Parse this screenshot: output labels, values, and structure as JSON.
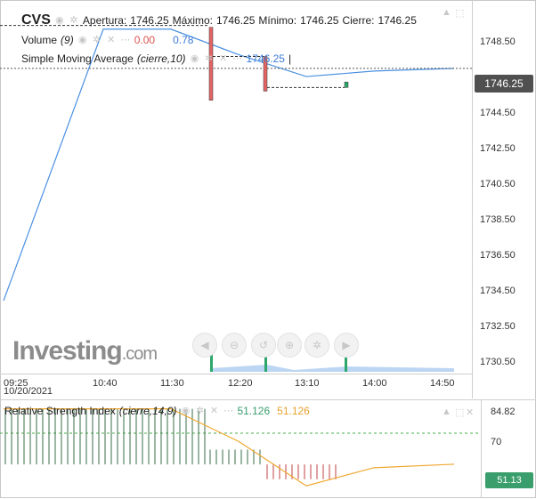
{
  "symbol": "CVS",
  "ohlc": {
    "open_label": "Apertura:",
    "open": "1746.25",
    "high_label": "Máximo:",
    "high": "1746.25",
    "low_label": "Mínimo:",
    "low": "1746.25",
    "close_label": "Cierre:",
    "close": "1746.25"
  },
  "volume": {
    "name": "Volume",
    "param": "(9)",
    "value_red": "0.00",
    "value_blue": "0.78"
  },
  "sma": {
    "name": "Simple Moving Average",
    "param": "(cierre,10)",
    "value": "1746.25",
    "suffix": "|"
  },
  "price_tag": "1746.25",
  "y_ticks": [
    "1748.50",
    "1744.50",
    "1742.50",
    "1740.50",
    "1738.50",
    "1736.50",
    "1734.50",
    "1732.50",
    "1730.50"
  ],
  "x_ticks": [
    "09:25",
    "10:40",
    "11:30",
    "12:20",
    "13:10",
    "14:00",
    "14:50"
  ],
  "date_label": "10/20/2021",
  "watermark": "Investing",
  "watermark_suffix": ".com",
  "rsi": {
    "name": "Relative Strength Index",
    "param": "(cierre,14,9)",
    "value_green": "51.126",
    "value_orange": "51.126",
    "tag": "51.13",
    "ticks": [
      "84.82",
      "70"
    ]
  },
  "nav_icons": [
    "arrow-left-icon",
    "zoom-out-icon",
    "reset-icon",
    "zoom-in-icon",
    "settings-icon",
    "arrow-right-icon"
  ],
  "colors": {
    "sma_line": "#4a90e2",
    "up": "#2ca66a",
    "down": "#e46464",
    "rsi_line": "#f0a830",
    "rsi_level": "#48b048",
    "price_tag": "#505050"
  },
  "chart_data": [
    {
      "type": "line",
      "title": "",
      "xlabel": "",
      "ylabel": "",
      "categories": [
        "09:25",
        "10:40",
        "11:30",
        "12:20",
        "13:10",
        "14:00",
        "14:50"
      ],
      "series": [
        {
          "name": "Simple Moving Average",
          "values": [
            1733.5,
            1748.4,
            1748.4,
            1747.0,
            1745.8,
            1746.1,
            1746.25
          ]
        }
      ],
      "ylim": [
        1729.5,
        1750.0
      ],
      "grid": false
    },
    {
      "type": "line",
      "title": "",
      "categories": [
        "09:25",
        "10:40",
        "11:30",
        "12:20",
        "13:10",
        "14:00",
        "14:50"
      ],
      "series": [
        {
          "name": "Relative Strength Index",
          "values": [
            84.8,
            84.8,
            84.8,
            65,
            38,
            49,
            51.13
          ]
        }
      ],
      "levels": [
        70
      ],
      "grid": false
    }
  ]
}
